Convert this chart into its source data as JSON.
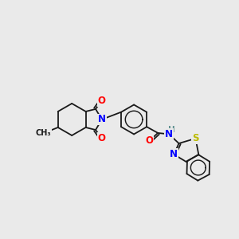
{
  "background_color": "#eaeaea",
  "bond_color": "#1a1a1a",
  "atom_colors": {
    "N": "#0000ff",
    "O": "#ff0000",
    "S": "#bbbb00",
    "H": "#5f9090",
    "C": "#1a1a1a"
  },
  "lw": 1.3
}
